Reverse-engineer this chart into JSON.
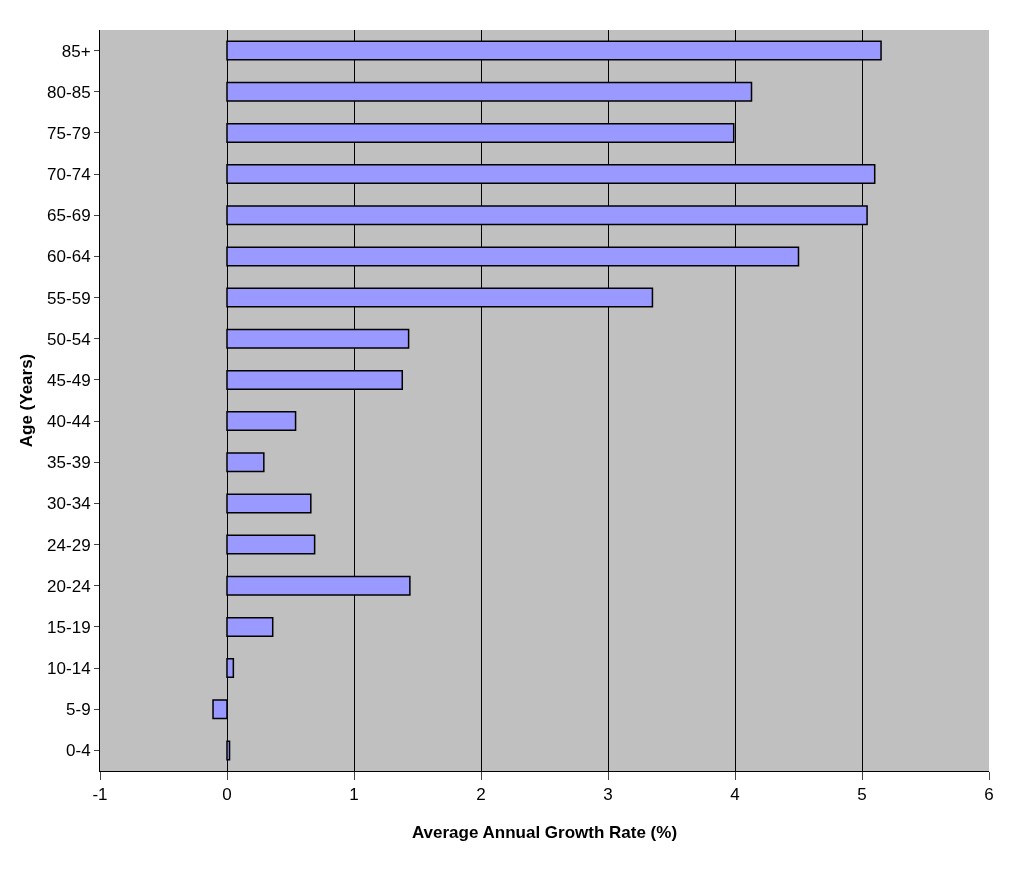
{
  "chart_data": {
    "type": "bar",
    "orientation": "horizontal",
    "xlabel": "Average Annual Growth Rate (%)",
    "ylabel": "Age (Years)",
    "categories": [
      "85+",
      "80-85",
      "75-79",
      "70-74",
      "65-69",
      "60-64",
      "55-59",
      "50-54",
      "45-49",
      "40-44",
      "35-39",
      "30-34",
      "24-29",
      "20-24",
      "15-19",
      "10-14",
      "5-9",
      "0-4"
    ],
    "values": [
      5.15,
      4.13,
      3.99,
      5.1,
      5.04,
      4.5,
      3.35,
      1.43,
      1.38,
      0.54,
      0.29,
      0.66,
      0.69,
      1.44,
      0.36,
      0.05,
      -0.11,
      0.02
    ],
    "color": "#9999ff",
    "xlim": [
      -1,
      6
    ],
    "xticks": [
      -1,
      0,
      1,
      2,
      3,
      4,
      5,
      6
    ],
    "grid": "x"
  }
}
